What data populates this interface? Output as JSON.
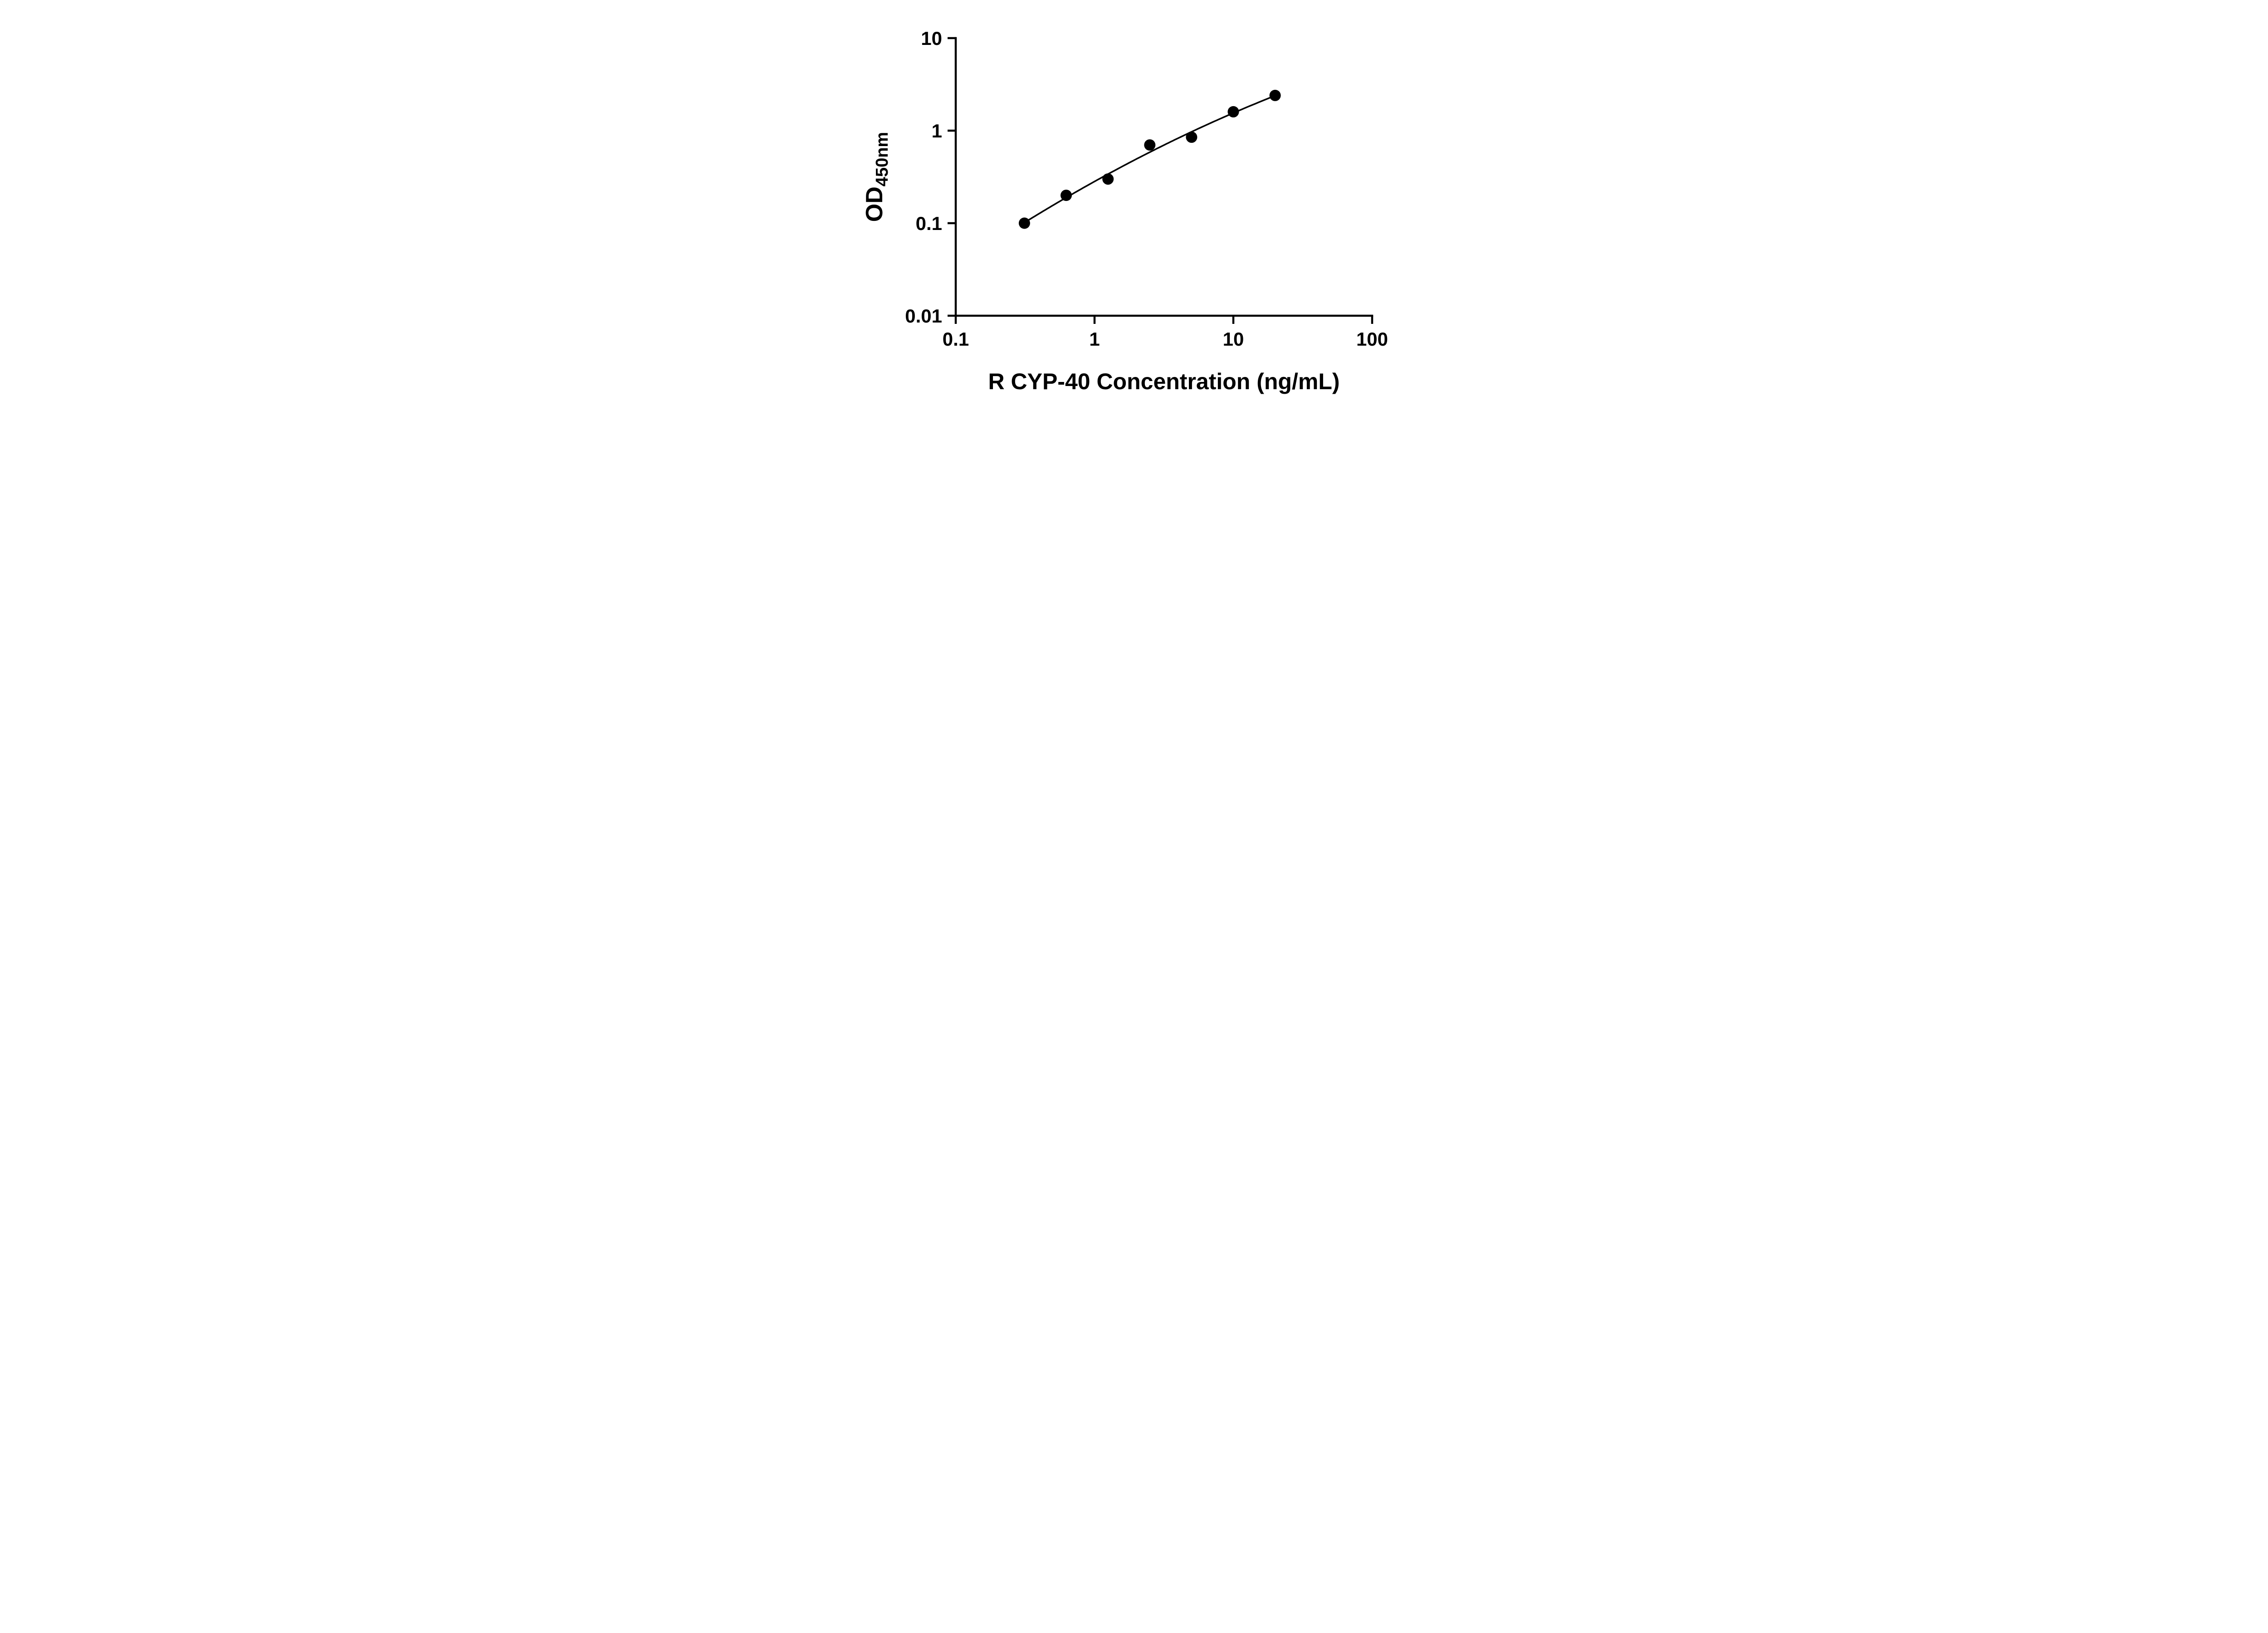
{
  "chart_data": {
    "type": "scatter",
    "title": "",
    "xlabel": "R CYP-40 Concentration (ng/mL)",
    "ylabel_main": "OD",
    "ylabel_sub": "450nm",
    "x": [
      0.3125,
      0.625,
      1.25,
      2.5,
      5,
      10,
      20
    ],
    "y": [
      0.1,
      0.2,
      0.3,
      0.7,
      0.85,
      1.6,
      2.4
    ],
    "x_scale": "log",
    "y_scale": "log",
    "xlim": [
      0.1,
      100
    ],
    "ylim": [
      0.01,
      10
    ],
    "x_ticks": [
      0.1,
      1,
      10,
      100
    ],
    "x_tick_labels": [
      "0.1",
      "1",
      "10",
      "100"
    ],
    "y_ticks": [
      0.01,
      0.1,
      1,
      10
    ],
    "y_tick_labels": [
      "0.01",
      "0.1",
      "1",
      "10"
    ],
    "fit_line": "smooth curve through points (least-squares quadratic in log-log space)",
    "grid": false,
    "legend": null,
    "colors": {
      "axis": "#000000",
      "marker": "#000000",
      "curve": "#000000",
      "background": "#ffffff"
    }
  }
}
